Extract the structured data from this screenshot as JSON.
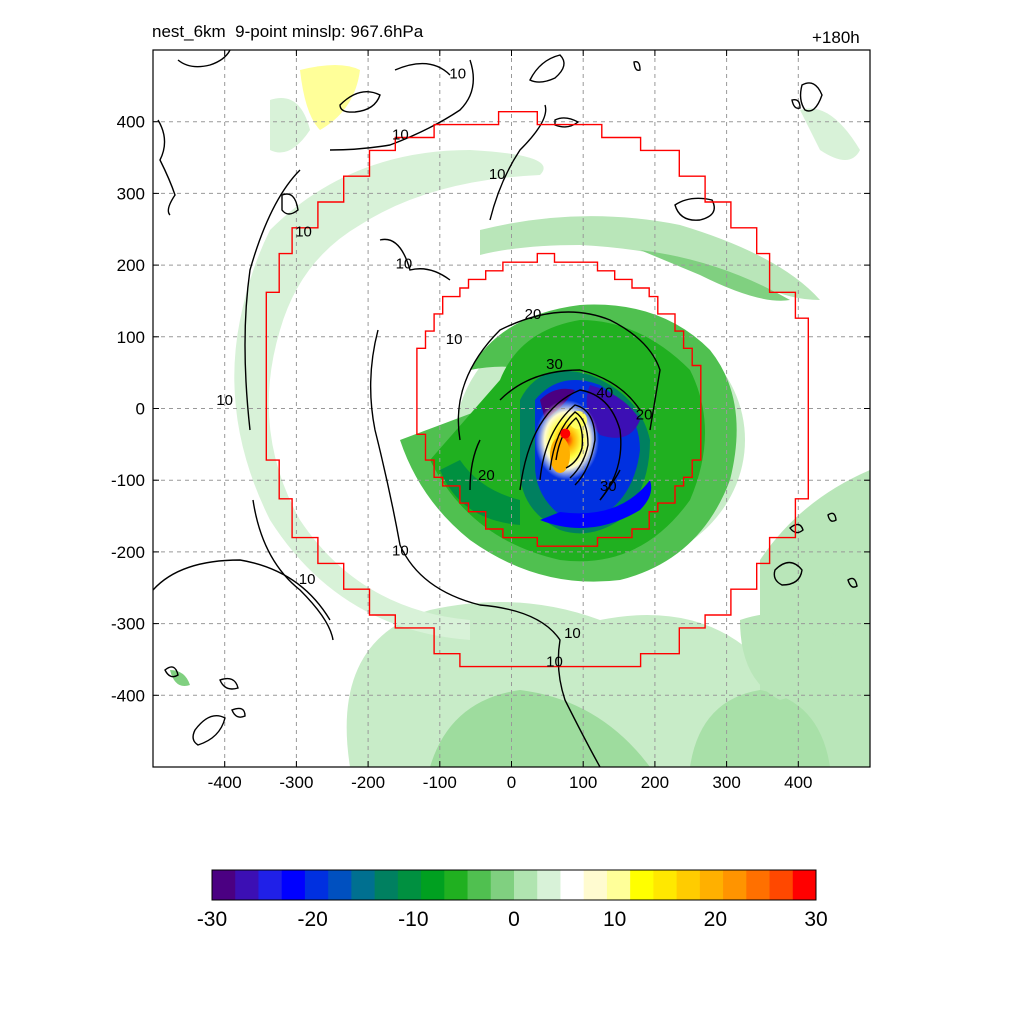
{
  "chart_data": {
    "type": "heatmap",
    "title": "nest_6km  9-point minslp: 967.6hPa",
    "subtitle": "+180h",
    "xlabel": "",
    "ylabel": "",
    "xlim": [
      -500,
      500
    ],
    "ylim": [
      -500,
      500
    ],
    "x_ticks": [
      -400,
      -300,
      -200,
      -100,
      0,
      100,
      200,
      300,
      400
    ],
    "y_ticks": [
      400,
      300,
      200,
      100,
      0,
      -100,
      -200,
      -300,
      -400
    ],
    "grid": true,
    "center_marker": {
      "x": 75,
      "y": -35,
      "color": "#ff0000"
    },
    "colorbar": {
      "min": -30,
      "max": 30,
      "tick_labels": [
        -30,
        -20,
        -10,
        0,
        10,
        20,
        30
      ],
      "colors": [
        "#4b0082",
        "#3c0fb4",
        "#2020e8",
        "#0000ff",
        "#0030e0",
        "#0050c0",
        "#007090",
        "#008060",
        "#009040",
        "#00a020",
        "#20b020",
        "#50c050",
        "#80d080",
        "#b0e4b0",
        "#d8f2d8",
        "#ffffff",
        "#fffbd0",
        "#ffff99",
        "#ffff00",
        "#ffe800",
        "#ffcc00",
        "#ffb000",
        "#ff9400",
        "#ff7000",
        "#ff4800",
        "#ff0000"
      ]
    },
    "contour_labels": [
      {
        "text": "10",
        "x": -400,
        "y": 5
      },
      {
        "text": "10",
        "x": -290,
        "y": 240
      },
      {
        "text": "10",
        "x": -150,
        "y": 195
      },
      {
        "text": "10",
        "x": -80,
        "y": 90
      },
      {
        "text": "10",
        "x": -155,
        "y": 375
      },
      {
        "text": "10",
        "x": -75,
        "y": 460
      },
      {
        "text": "10",
        "x": -20,
        "y": 320
      },
      {
        "text": "10",
        "x": -155,
        "y": -205
      },
      {
        "text": "10",
        "x": -285,
        "y": -245
      },
      {
        "text": "10",
        "x": 85,
        "y": -320
      },
      {
        "text": "10",
        "x": 60,
        "y": -360
      },
      {
        "text": "20",
        "x": 30,
        "y": 125
      },
      {
        "text": "20",
        "x": -35,
        "y": -100
      },
      {
        "text": "20",
        "x": 185,
        "y": -15
      },
      {
        "text": "30",
        "x": 60,
        "y": 55
      },
      {
        "text": "30",
        "x": 135,
        "y": -115
      },
      {
        "text": "40",
        "x": 130,
        "y": 15
      }
    ]
  }
}
